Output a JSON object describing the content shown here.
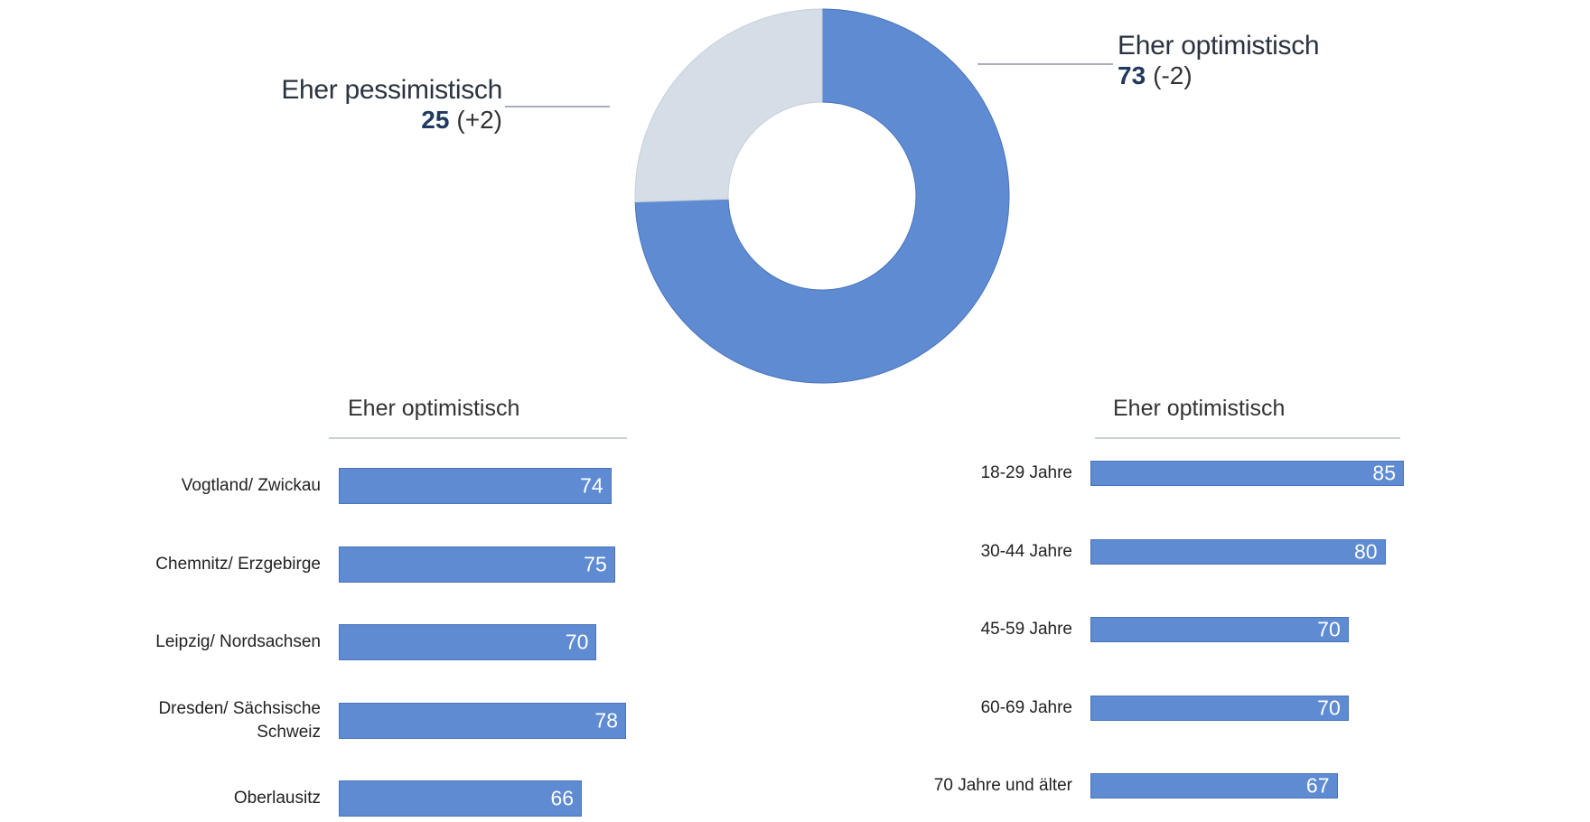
{
  "chart_data": [
    {
      "type": "pie",
      "donut": true,
      "title": "",
      "slices": [
        {
          "label": "Eher optimistisch",
          "value": 73,
          "change": "(-2)",
          "color": "#5f8bd2"
        },
        {
          "label": "Eher pessimistisch",
          "value": 25,
          "change": "(+2)",
          "color": "#d5dde7"
        }
      ]
    },
    {
      "type": "bar",
      "orientation": "horizontal",
      "title": "Eher optimistisch",
      "categories": [
        "Vogtland/ Zwickau",
        "Chemnitz/ Erzgebirge",
        "Leipzig/ Nordsachsen",
        "Dresden/ Sächsische Schweiz",
        "Oberlausitz"
      ],
      "values": [
        74,
        75,
        70,
        78,
        66
      ],
      "xlim": [
        0,
        78
      ],
      "color": "#5f8bd2"
    },
    {
      "type": "bar",
      "orientation": "horizontal",
      "title": "Eher optimistisch",
      "categories": [
        "18-29 Jahre",
        "30-44 Jahre",
        "45-59 Jahre",
        "60-69 Jahre",
        "70 Jahre und älter"
      ],
      "values": [
        85,
        80,
        70,
        70,
        67
      ],
      "xlim": [
        0,
        85
      ],
      "color": "#5f8bd2"
    }
  ]
}
